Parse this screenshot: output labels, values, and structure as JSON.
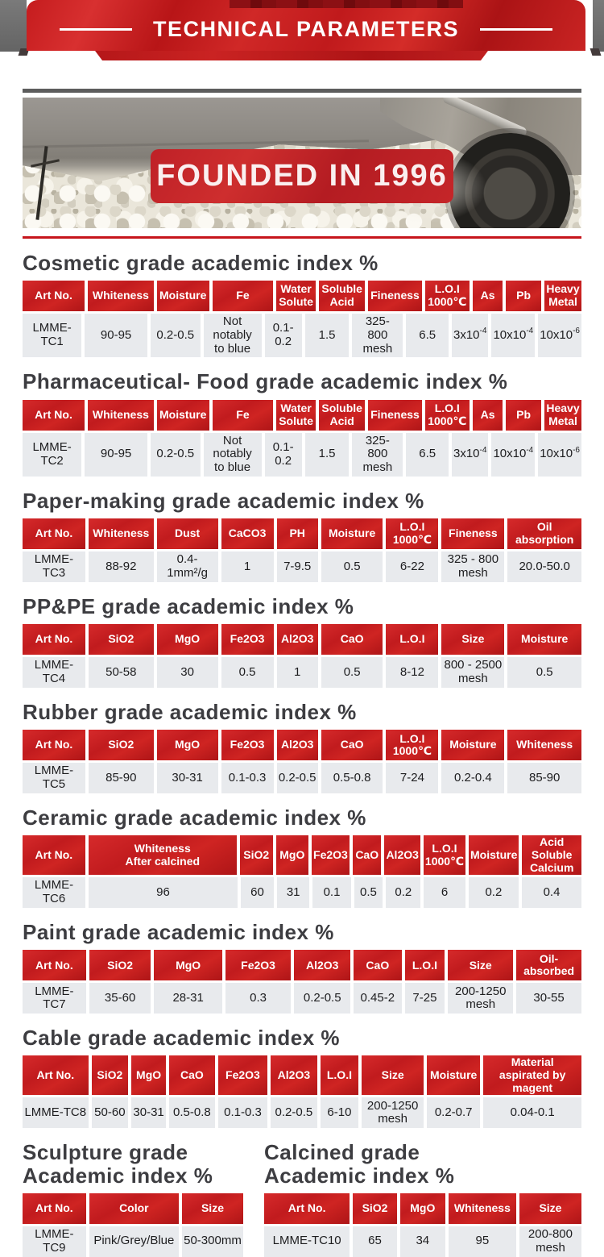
{
  "banner": {
    "title": "TECHNICAL PARAMETERS"
  },
  "hero": {
    "caption": "FOUNDED IN 1996"
  },
  "accent": {
    "brand_red": "#c6151c",
    "header_red": "#cc2024",
    "dark_red_remnant": "#7c0e11",
    "corner_gray": "#6b6b6b",
    "divider_gray": "#5c5c5c",
    "row_bg": "#e8eaed",
    "title_color": "#3d3d41"
  },
  "tables": [
    {
      "title": "Cosmetic grade academic index %",
      "headers": [
        "Art No.",
        "Whiteness",
        "Moisture",
        "Fe",
        "Water\nSolute",
        "Soluble\nAcid",
        "Fineness",
        "L.O.I\n1000℃",
        "As",
        "Pb",
        "Heavy\nMetal"
      ],
      "rows": [
        [
          "LMME-TC1",
          "90-95",
          "0.2-0.5",
          "Not notably\nto blue",
          "0.1-0.2",
          "1.5",
          "325-\n800 mesh",
          "6.5",
          "3x10^-4",
          "10x10^-4",
          "10x10^-6"
        ]
      ]
    },
    {
      "title": "Pharmaceutical- Food grade academic index %",
      "headers": [
        "Art No.",
        "Whiteness",
        "Moisture",
        "Fe",
        "Water\nSolute",
        "Soluble\nAcid",
        "Fineness",
        "L.O.I\n1000℃",
        "As",
        "Pb",
        "Heavy\nMetal"
      ],
      "rows": [
        [
          "LMME-TC2",
          "90-95",
          "0.2-0.5",
          "Not notably\nto blue",
          "0.1-0.2",
          "1.5",
          "325-\n800 mesh",
          "6.5",
          "3x10^-4",
          "10x10^-4",
          "10x10^-6"
        ]
      ]
    },
    {
      "title": "Paper-making grade academic index %",
      "headers": [
        "Art No.",
        "Whiteness",
        "Dust",
        "CaCO3",
        "PH",
        "Moisture",
        "L.O.I\n1000℃",
        "Fineness",
        "Oil absorption"
      ],
      "rows": [
        [
          "LMME-TC3",
          "88-92",
          "0.4-1mm²/g",
          "1",
          "7-9.5",
          "0.5",
          "6-22",
          "325 - 800\nmesh",
          "20.0-50.0"
        ]
      ]
    },
    {
      "title": "PP&PE grade academic index %",
      "headers": [
        "Art No.",
        "SiO2",
        "MgO",
        "Fe2O3",
        "Al2O3",
        "CaO",
        "L.O.I",
        "Size",
        "Moisture"
      ],
      "rows": [
        [
          "LMME-TC4",
          "50-58",
          "30",
          "0.5",
          "1",
          "0.5",
          "8-12",
          "800 - 2500\nmesh",
          "0.5"
        ]
      ]
    },
    {
      "title": "Rubber grade academic index %",
      "headers": [
        "Art No.",
        "SiO2",
        "MgO",
        "Fe2O3",
        "Al2O3",
        "CaO",
        "L.O.I\n1000℃",
        "Moisture",
        "Whiteness"
      ],
      "rows": [
        [
          "LMME-TC5",
          "85-90",
          "30-31",
          "0.1-0.3",
          "0.2-0.5",
          "0.5-0.8",
          "7-24",
          "0.2-0.4",
          "85-90"
        ]
      ]
    },
    {
      "title": "Ceramic grade academic index %",
      "headers": [
        "Art No.",
        "Whiteness\nAfter calcined",
        "SiO2",
        "MgO",
        "Fe2O3",
        "CaO",
        "Al2O3",
        "L.O.I\n1000℃",
        "Moisture",
        "Acid Soluble\nCalcium"
      ],
      "rows": [
        [
          "LMME-TC6",
          "96",
          "60",
          "31",
          "0.1",
          "0.5",
          "0.2",
          "6",
          "0.2",
          "0.4"
        ]
      ]
    },
    {
      "title": "Paint grade academic index %",
      "headers": [
        "Art No.",
        "SiO2",
        "MgO",
        "Fe2O3",
        "Al2O3",
        "CaO",
        "L.O.I",
        "Size",
        "Oil-\nabsorbed"
      ],
      "rows": [
        [
          "LMME-TC7",
          "35-60",
          "28-31",
          "0.3",
          "0.2-0.5",
          "0.45-2",
          "7-25",
          "200-1250\nmesh",
          "30-55"
        ]
      ]
    },
    {
      "title": "Cable grade academic index %",
      "headers": [
        "Art No.",
        "SiO2",
        "MgO",
        "CaO",
        "Fe2O3",
        "Al2O3",
        "L.O.I",
        "Size",
        "Moisture",
        "Material aspirated by\nmagent"
      ],
      "rows": [
        [
          "LMME-TC8",
          "50-60",
          "30-31",
          "0.5-0.8",
          "0.1-0.3",
          "0.2-0.5",
          "6-10",
          "200-1250\nmesh",
          "0.2-0.7",
          "0.04-0.1"
        ]
      ]
    },
    {
      "title": "Sculpture grade\nAcademic index %",
      "headers": [
        "Art No.",
        "Color",
        "Size"
      ],
      "rows": [
        [
          "LMME-TC9",
          "Pink/Grey/Blue",
          "50-300mm"
        ]
      ]
    },
    {
      "title": "Calcined grade\nAcademic index %",
      "headers": [
        "Art No.",
        "SiO2",
        "MgO",
        "Whiteness",
        "Size"
      ],
      "rows": [
        [
          "LMME-TC10",
          "65",
          "34",
          "95",
          "200-800\nmesh"
        ]
      ]
    }
  ]
}
